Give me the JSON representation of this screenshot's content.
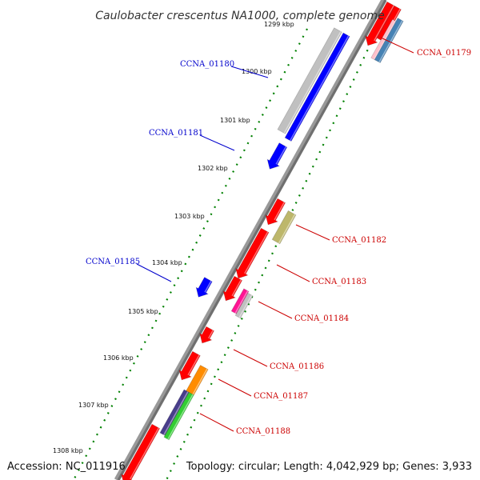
{
  "title": "Caulobacter crescentus NA1000, complete genome",
  "footer": {
    "accession": "Accession: NC_011916",
    "summary": "Topology: circular; Length: 4,042,929 bp; Genes: 3,933"
  },
  "colors": {
    "plus_label": "#0000cc",
    "minus_label": "#cc0000",
    "ticks": "#008000",
    "backbone": "#888888"
  },
  "ticks": [
    {
      "label": "1299 kbp"
    },
    {
      "label": "1300 kbp"
    },
    {
      "label": "1301 kbp"
    },
    {
      "label": "1302 kbp"
    },
    {
      "label": "1303 kbp"
    },
    {
      "label": "1304 kbp"
    },
    {
      "label": "1305 kbp"
    },
    {
      "label": "1306 kbp"
    },
    {
      "label": "1307 kbp"
    },
    {
      "label": "1308 kbp"
    }
  ],
  "labels": [
    {
      "text": "CCNA_01180",
      "strand": "+"
    },
    {
      "text": "CCNA_01181",
      "strand": "+"
    },
    {
      "text": "CCNA_01185",
      "strand": "+"
    },
    {
      "text": "CCNA_01179",
      "strand": "-"
    },
    {
      "text": "CCNA_01182",
      "strand": "-"
    },
    {
      "text": "CCNA_01183",
      "strand": "-"
    },
    {
      "text": "CCNA_01184",
      "strand": "-"
    },
    {
      "text": "CCNA_01186",
      "strand": "-"
    },
    {
      "text": "CCNA_01187",
      "strand": "-"
    },
    {
      "text": "CCNA_01188",
      "strand": "-"
    }
  ],
  "features": [
    {
      "color": "#0000ff",
      "strand": "+"
    },
    {
      "color": "#c0c0c0",
      "strand": "+"
    },
    {
      "color": "#0000ff",
      "strand": "+"
    },
    {
      "color": "#0000ff",
      "strand": "+"
    },
    {
      "color": "#ff0000",
      "strand": "-"
    },
    {
      "color": "#ff0000",
      "strand": "-"
    },
    {
      "color": "#bdb76b",
      "strand": "-"
    },
    {
      "color": "#ff0000",
      "strand": "-"
    },
    {
      "color": "#ff0000",
      "strand": "-"
    },
    {
      "color": "#ff1493",
      "strand": "-"
    },
    {
      "color": "#c0c0c0",
      "strand": "-"
    },
    {
      "color": "#ff0000",
      "strand": "-"
    },
    {
      "color": "#ff0000",
      "strand": "-"
    },
    {
      "color": "#ff8c00",
      "strand": "-"
    },
    {
      "color": "#483d8b",
      "strand": "-"
    },
    {
      "color": "#32cd32",
      "strand": "-"
    },
    {
      "color": "#ff0000",
      "strand": "-"
    },
    {
      "color": "#ff0000",
      "strand": "-"
    },
    {
      "color": "#ffc0cb",
      "strand": "-"
    },
    {
      "color": "#4682b4",
      "strand": "-"
    },
    {
      "color": "#0000ff",
      "strand": "-"
    }
  ]
}
